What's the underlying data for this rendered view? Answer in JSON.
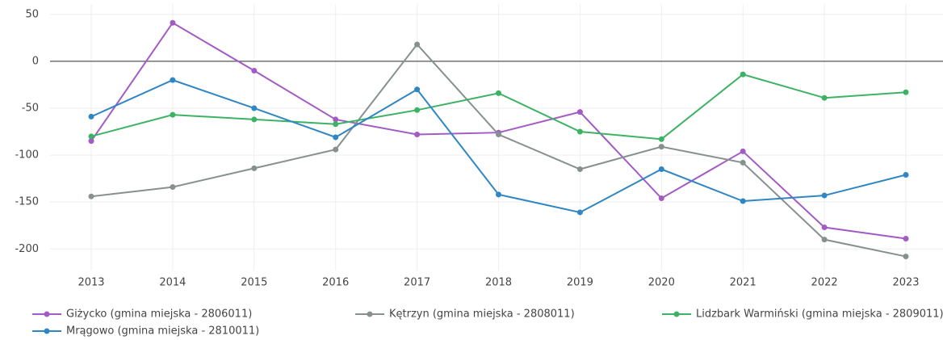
{
  "chart_data": {
    "type": "line",
    "categories": [
      "2013",
      "2014",
      "2015",
      "2016",
      "2017",
      "2018",
      "2019",
      "2020",
      "2021",
      "2022",
      "2023"
    ],
    "series": [
      {
        "name": "Giżycko (gmina miejska - 2806011)",
        "color": "#a35bc4",
        "values": [
          -85,
          41,
          -10,
          -62,
          -78,
          -76,
          -54,
          -146,
          -96,
          -177,
          -189
        ]
      },
      {
        "name": "Kętrzyn (gmina miejska - 2808011)",
        "color": "#86918f",
        "values": [
          -144,
          -134,
          -114,
          -94,
          18,
          -78,
          -115,
          -91,
          -108,
          -190,
          -208
        ]
      },
      {
        "name": "Lidzbark Warmiński (gmina miejska - 2809011)",
        "color": "#3cb364",
        "values": [
          -80,
          -57,
          -62,
          -67,
          -52,
          -34,
          -75,
          -83,
          -14,
          -39,
          -33
        ]
      },
      {
        "name": "Mrągowo (gmina miejska - 2810011)",
        "color": "#2f86c3",
        "values": [
          -59,
          -20,
          -50,
          -81,
          -30,
          -142,
          -161,
          -115,
          -149,
          -143,
          -121
        ]
      }
    ],
    "ylim": [
      -223,
      61
    ],
    "yticks": [
      50,
      0,
      -50,
      -100,
      -150,
      -200
    ],
    "grid": true,
    "legend": "bottom"
  }
}
